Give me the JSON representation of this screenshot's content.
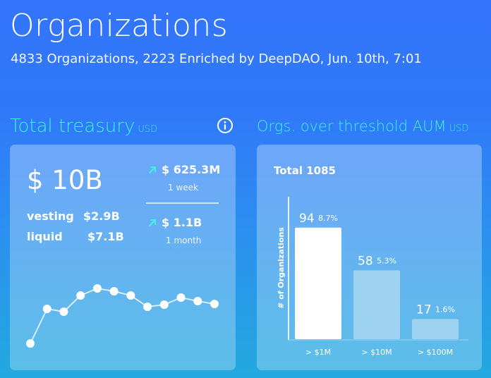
{
  "header": {
    "title": "Organizations",
    "subtitle": "4833 Organizations, 2223 Enriched by DeepDAO, Jun. 10th, 7:01"
  },
  "treasury": {
    "heading": "Total treasury",
    "unit": "USD",
    "info_icon": "info-circle-icon",
    "total": "$ 10B",
    "vesting_label": "vesting",
    "vesting_value": "$2.9B",
    "liquid_label": "liquid",
    "liquid_value": "$7.1B",
    "week_change": "$ 625.3M",
    "week_label": "1 week",
    "month_change": "$ 1.1B",
    "month_label": "1 month",
    "trend_icon": "arrow-up-right-icon",
    "sparkline": [
      28,
      77,
      73,
      96,
      106,
      102,
      96,
      80,
      83,
      93,
      88,
      84
    ]
  },
  "aum": {
    "heading": "Orgs. over threshold AUM",
    "unit": "USD",
    "total_label": "Total 1085"
  },
  "chart_data": {
    "type": "bar",
    "ylabel": "# of Organizations",
    "categories": [
      "> $1M",
      "> $10M",
      "> $100M"
    ],
    "values": [
      94,
      58,
      17
    ],
    "percent_labels": [
      "8.7%",
      "5.3%",
      "1.6%"
    ],
    "ylim": [
      0,
      120
    ],
    "grid": false,
    "colors": [
      "#ffffff",
      "#9dd2f0",
      "#9dd2f0"
    ]
  },
  "colors": {
    "accent_cyan": "#3ff3e4",
    "background_top": "#3374fb",
    "background_bottom": "#23a9df"
  }
}
